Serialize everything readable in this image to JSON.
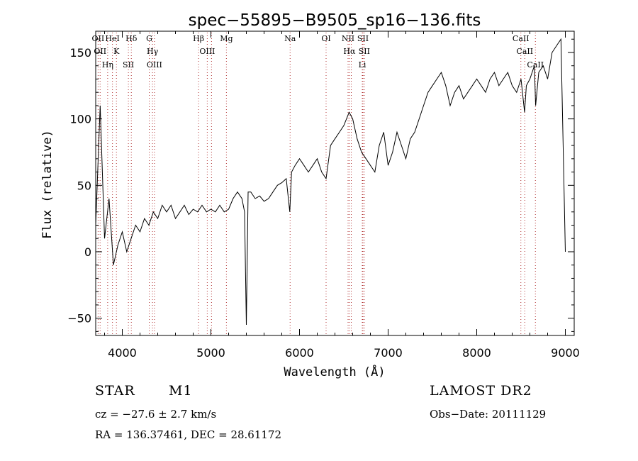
{
  "chart_data": {
    "type": "line",
    "title": "spec−55895−B9505_sp16−136.fits",
    "xlabel": "Wavelength (Å)",
    "ylabel": "Flux (relative)",
    "xlim": [
      3700,
      9100
    ],
    "ylim": [
      -63,
      166
    ],
    "xticks": [
      4000,
      5000,
      6000,
      7000,
      8000,
      9000
    ],
    "yticks": [
      -50,
      0,
      50,
      100,
      150
    ],
    "xtick_labels": [
      "4000",
      "5000",
      "6000",
      "7000",
      "8000",
      "9000"
    ],
    "ytick_labels": [
      "−50",
      "0",
      "50",
      "100",
      "150"
    ],
    "grid": false,
    "legend": "none",
    "line_color": "#000000",
    "marker_color": "#b03030",
    "series": [
      {
        "x": [
          3700,
          3750,
          3800,
          3850,
          3900,
          3950,
          4000,
          4050,
          4100,
          4150,
          4200,
          4250,
          4300,
          4350,
          4400,
          4450,
          4500,
          4550,
          4600,
          4650,
          4700,
          4750,
          4800,
          4850,
          4900,
          4950,
          5000,
          5050,
          5100,
          5150,
          5200,
          5250,
          5300,
          5350,
          5380,
          5400,
          5420,
          5450,
          5500,
          5550,
          5600,
          5650,
          5700,
          5750,
          5800,
          5850,
          5890,
          5910,
          5950,
          6000,
          6050,
          6100,
          6150,
          6200,
          6250,
          6300,
          6350,
          6400,
          6450,
          6500,
          6560,
          6600,
          6650,
          6700,
          6750,
          6800,
          6850,
          6900,
          6950,
          7000,
          7050,
          7100,
          7150,
          7200,
          7250,
          7300,
          7350,
          7400,
          7450,
          7500,
          7550,
          7600,
          7650,
          7700,
          7750,
          7800,
          7850,
          7900,
          7950,
          8000,
          8050,
          8100,
          8150,
          8200,
          8250,
          8300,
          8350,
          8400,
          8450,
          8500,
          8540,
          8560,
          8600,
          8650,
          8665,
          8700,
          8750,
          8800,
          8850,
          8900,
          8950,
          9000
        ],
        "y": [
          20,
          110,
          10,
          40,
          -10,
          5,
          15,
          0,
          10,
          20,
          15,
          25,
          20,
          30,
          25,
          35,
          30,
          35,
          25,
          30,
          35,
          28,
          32,
          30,
          35,
          30,
          32,
          30,
          35,
          30,
          32,
          40,
          45,
          40,
          30,
          -55,
          45,
          45,
          40,
          42,
          38,
          40,
          45,
          50,
          52,
          55,
          30,
          60,
          65,
          70,
          65,
          60,
          65,
          70,
          60,
          55,
          80,
          85,
          90,
          95,
          105,
          100,
          85,
          75,
          70,
          65,
          60,
          80,
          90,
          65,
          75,
          90,
          80,
          70,
          85,
          90,
          100,
          110,
          120,
          125,
          130,
          135,
          125,
          110,
          120,
          125,
          115,
          120,
          125,
          130,
          125,
          120,
          130,
          135,
          125,
          130,
          135,
          125,
          120,
          130,
          105,
          125,
          130,
          140,
          110,
          135,
          140,
          130,
          150,
          155,
          160,
          0
        ]
      }
    ],
    "lines": [
      {
        "x": 3727,
        "labels": [
          "OII"
        ]
      },
      {
        "x": 3750,
        "labels": [
          "OII"
        ]
      },
      {
        "x": 3835,
        "labels": [
          "Hη"
        ]
      },
      {
        "x": 3889,
        "labels": [
          "HeI"
        ]
      },
      {
        "x": 3934,
        "labels": [
          "K"
        ]
      },
      {
        "x": 4069,
        "labels": [
          "SII"
        ]
      },
      {
        "x": 4102,
        "labels": [
          "Hδ"
        ]
      },
      {
        "x": 4304,
        "labels": [
          "G"
        ]
      },
      {
        "x": 4341,
        "labels": [
          "Hγ"
        ]
      },
      {
        "x": 4363,
        "labels": [
          "OIII"
        ]
      },
      {
        "x": 4861,
        "labels": [
          "Hβ"
        ]
      },
      {
        "x": 4959,
        "labels": [
          "OIII"
        ]
      },
      {
        "x": 5007,
        "labels": []
      },
      {
        "x": 5175,
        "labels": [
          "Mg"
        ]
      },
      {
        "x": 5894,
        "labels": [
          "Na"
        ]
      },
      {
        "x": 6300,
        "labels": [
          "OI"
        ]
      },
      {
        "x": 6548,
        "labels": [
          "NII"
        ]
      },
      {
        "x": 6563,
        "labels": [
          "Hα"
        ]
      },
      {
        "x": 6584,
        "labels": []
      },
      {
        "x": 6708,
        "labels": [
          "Li"
        ]
      },
      {
        "x": 6716,
        "labels": [
          "SII"
        ]
      },
      {
        "x": 6731,
        "labels": [
          "SII"
        ]
      },
      {
        "x": 8498,
        "labels": [
          "CaII"
        ]
      },
      {
        "x": 8542,
        "labels": [
          "CaII"
        ]
      },
      {
        "x": 8662,
        "labels": [
          "CaII"
        ]
      }
    ]
  },
  "info": {
    "object_class": "STAR",
    "subclass": "M1",
    "survey": "LAMOST DR2",
    "redshift": "cz = −27.6 ± 2.7 km/s",
    "obs_date": "Obs−Date: 20111129",
    "coordinates": "RA = 136.37461, DEC =  28.61172"
  }
}
